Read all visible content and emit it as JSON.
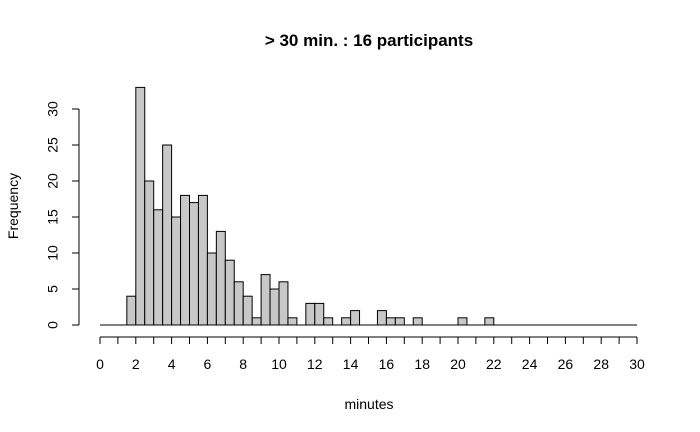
{
  "chart_data": {
    "type": "bar",
    "title": "> 30 min. : 16 participants",
    "xlabel": "minutes",
    "ylabel": "Frequency",
    "xlim": [
      0,
      30
    ],
    "ylim": [
      0,
      33
    ],
    "bin_width": 0.5,
    "x_ticks": [
      0,
      2,
      4,
      6,
      8,
      10,
      12,
      14,
      16,
      18,
      20,
      22,
      24,
      26,
      28,
      30
    ],
    "x_tick_labels": [
      "0",
      "2",
      "4",
      "6",
      "8",
      "10",
      "12",
      "14",
      "16",
      "18",
      "20",
      "22",
      "24",
      "26",
      "28",
      "30"
    ],
    "y_ticks": [
      0,
      5,
      10,
      15,
      20,
      25,
      30
    ],
    "y_tick_labels": [
      "0",
      "5",
      "10",
      "15",
      "20",
      "25",
      "30"
    ],
    "grid": false,
    "bins": [
      {
        "start": 1.5,
        "end": 2.0,
        "count": 4
      },
      {
        "start": 2.0,
        "end": 2.5,
        "count": 33
      },
      {
        "start": 2.5,
        "end": 3.0,
        "count": 20
      },
      {
        "start": 3.0,
        "end": 3.5,
        "count": 16
      },
      {
        "start": 3.5,
        "end": 4.0,
        "count": 25
      },
      {
        "start": 4.0,
        "end": 4.5,
        "count": 15
      },
      {
        "start": 4.5,
        "end": 5.0,
        "count": 18
      },
      {
        "start": 5.0,
        "end": 5.5,
        "count": 17
      },
      {
        "start": 5.5,
        "end": 6.0,
        "count": 18
      },
      {
        "start": 6.0,
        "end": 6.5,
        "count": 10
      },
      {
        "start": 6.5,
        "end": 7.0,
        "count": 13
      },
      {
        "start": 7.0,
        "end": 7.5,
        "count": 9
      },
      {
        "start": 7.5,
        "end": 8.0,
        "count": 6
      },
      {
        "start": 8.0,
        "end": 8.5,
        "count": 4
      },
      {
        "start": 8.5,
        "end": 9.0,
        "count": 1
      },
      {
        "start": 9.0,
        "end": 9.5,
        "count": 7
      },
      {
        "start": 9.5,
        "end": 10.0,
        "count": 5
      },
      {
        "start": 10.0,
        "end": 10.5,
        "count": 6
      },
      {
        "start": 10.5,
        "end": 11.0,
        "count": 1
      },
      {
        "start": 11.0,
        "end": 11.5,
        "count": 0
      },
      {
        "start": 11.5,
        "end": 12.0,
        "count": 3
      },
      {
        "start": 12.0,
        "end": 12.5,
        "count": 3
      },
      {
        "start": 12.5,
        "end": 13.0,
        "count": 1
      },
      {
        "start": 13.0,
        "end": 13.5,
        "count": 0
      },
      {
        "start": 13.5,
        "end": 14.0,
        "count": 1
      },
      {
        "start": 14.0,
        "end": 14.5,
        "count": 2
      },
      {
        "start": 14.5,
        "end": 15.0,
        "count": 0
      },
      {
        "start": 15.0,
        "end": 15.5,
        "count": 0
      },
      {
        "start": 15.5,
        "end": 16.0,
        "count": 2
      },
      {
        "start": 16.0,
        "end": 16.5,
        "count": 1
      },
      {
        "start": 16.5,
        "end": 17.0,
        "count": 1
      },
      {
        "start": 17.0,
        "end": 17.5,
        "count": 0
      },
      {
        "start": 17.5,
        "end": 18.0,
        "count": 1
      },
      {
        "start": 20.0,
        "end": 20.5,
        "count": 1
      },
      {
        "start": 21.5,
        "end": 22.0,
        "count": 1
      }
    ],
    "baseline_range": [
      0,
      30
    ]
  }
}
